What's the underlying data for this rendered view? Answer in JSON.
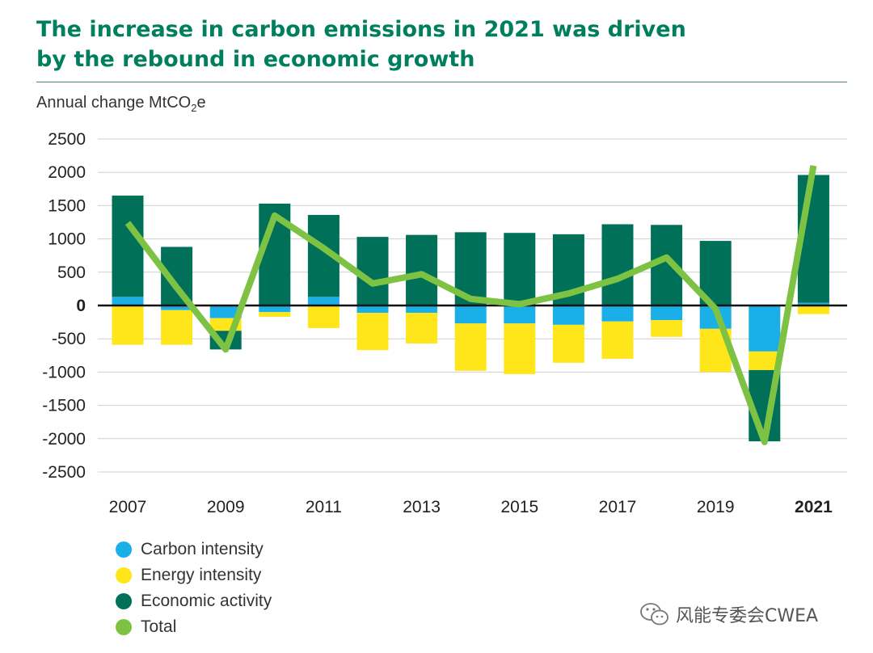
{
  "title": {
    "line1": "The increase in carbon emissions in 2021 was driven",
    "line2": "by the rebound in economic growth"
  },
  "y_axis_label": {
    "text": "Annual change MtCO",
    "subscript": "2",
    "suffix": "e"
  },
  "watermark": {
    "text": "风能专委会CWEA"
  },
  "colors": {
    "carbon_intensity": "#1aafe6",
    "energy_intensity": "#ffe61a",
    "economic_activity": "#007058",
    "total": "#7dc242",
    "title": "#007f5f"
  },
  "chart_data": {
    "type": "bar",
    "stacked": true,
    "title": "The increase in carbon emissions in 2021 was driven by the rebound in economic growth",
    "ylabel": "Annual change MtCO2e",
    "ylim": [
      -2500,
      2500
    ],
    "yticks": [
      2500,
      2000,
      1500,
      1000,
      500,
      0,
      -500,
      -1000,
      -1500,
      -2000,
      -2500
    ],
    "categories": [
      "2007",
      "2008",
      "2009",
      "2010",
      "2011",
      "2012",
      "2013",
      "2014",
      "2015",
      "2016",
      "2017",
      "2018",
      "2019",
      "2020",
      "2021"
    ],
    "xtick_labels": [
      {
        "label": "2007",
        "index": 0,
        "bold": false
      },
      {
        "label": "2009",
        "index": 2,
        "bold": false
      },
      {
        "label": "2011",
        "index": 4,
        "bold": false
      },
      {
        "label": "2013",
        "index": 6,
        "bold": false
      },
      {
        "label": "2015",
        "index": 8,
        "bold": false
      },
      {
        "label": "2017",
        "index": 10,
        "bold": false
      },
      {
        "label": "2019",
        "index": 12,
        "bold": false
      },
      {
        "label": "2021",
        "index": 14,
        "bold": true
      }
    ],
    "series": [
      {
        "name": "Carbon intensity",
        "key": "carbon_intensity",
        "values": [
          130,
          -70,
          -190,
          -100,
          130,
          -110,
          -110,
          -270,
          -270,
          -290,
          -240,
          -220,
          -350,
          -690,
          40
        ]
      },
      {
        "name": "Energy intensity",
        "key": "energy_intensity",
        "values": [
          -590,
          -520,
          -190,
          -70,
          -340,
          -560,
          -460,
          -710,
          -760,
          -570,
          -560,
          -250,
          -650,
          -280,
          -130
        ]
      },
      {
        "name": "Economic activity",
        "key": "economic_activity",
        "values": [
          1520,
          880,
          -280,
          1530,
          1230,
          1030,
          1060,
          1100,
          1090,
          1070,
          1220,
          1210,
          970,
          -1070,
          1920
        ]
      },
      {
        "name": "Total",
        "key": "total",
        "type": "line",
        "values": [
          1240,
          270,
          -660,
          1350,
          860,
          330,
          470,
          100,
          20,
          180,
          400,
          720,
          -50,
          -2050,
          2100
        ]
      }
    ],
    "legend": [
      "Carbon intensity",
      "Energy intensity",
      "Economic activity",
      "Total"
    ],
    "grid": true
  }
}
